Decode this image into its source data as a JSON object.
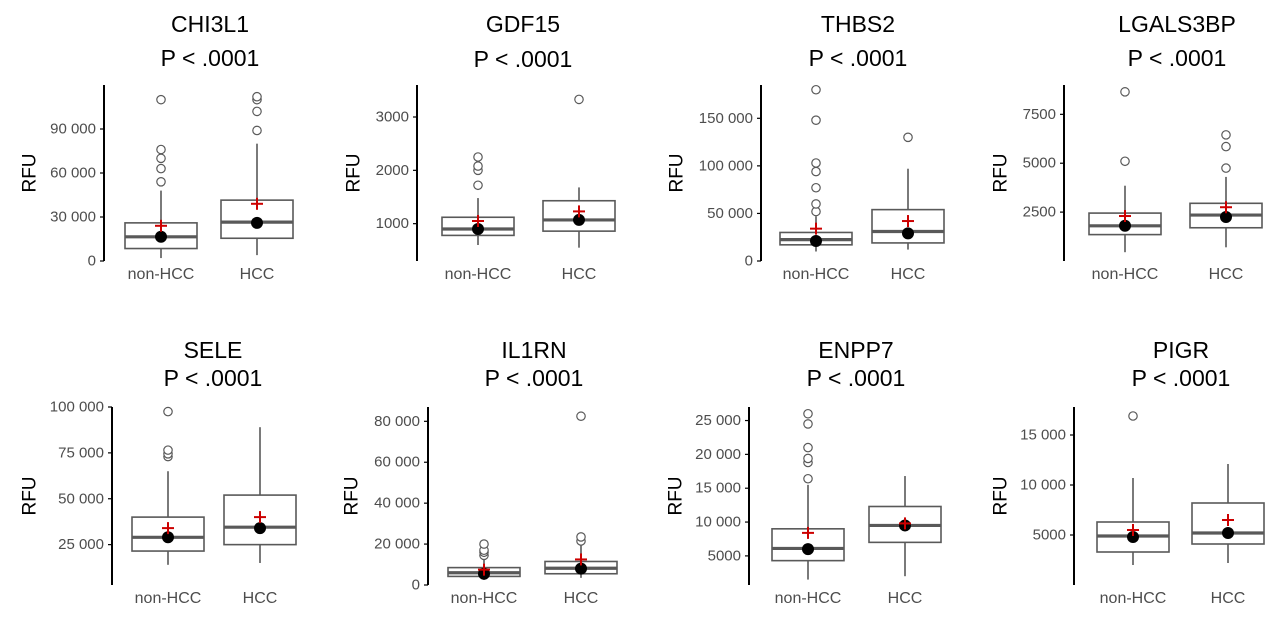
{
  "chart_data": [
    {
      "type": "boxplot",
      "title": "CHI3L1",
      "subtitle": "P < .0001",
      "ylabel": "RFU",
      "yticks": [
        0,
        30000,
        60000,
        90000
      ],
      "ytick_labels": [
        "0",
        "30 000",
        "60 000",
        "90 000"
      ],
      "ylim": [
        0,
        120000
      ],
      "categories": [
        "non-HCC",
        "HCC"
      ],
      "groups": [
        {
          "name": "non-HCC",
          "whisker_low": 2000,
          "q1": 8500,
          "median": 16500,
          "q3": 26000,
          "whisker_high": 48000,
          "mean": 24000,
          "median_point": 16500,
          "outliers": [
            54000,
            63000,
            70000,
            76000,
            110000
          ]
        },
        {
          "name": "HCC",
          "whisker_low": 4000,
          "q1": 15500,
          "median": 26500,
          "q3": 41500,
          "whisker_high": 80000,
          "mean": 39000,
          "median_point": 26000,
          "outliers": [
            89000,
            102000,
            110000,
            112000
          ]
        }
      ]
    },
    {
      "type": "boxplot",
      "title": "GDF15",
      "subtitle": "P < .0001",
      "ylabel": "RFU",
      "yticks": [
        1000,
        2000,
        3000
      ],
      "ytick_labels": [
        "1000",
        "2000",
        "3000"
      ],
      "ylim": [
        300,
        3600
      ],
      "categories": [
        "non-HCC",
        "HCC"
      ],
      "groups": [
        {
          "name": "non-HCC",
          "whisker_low": 600,
          "q1": 780,
          "median": 900,
          "q3": 1120,
          "whisker_high": 1480,
          "mean": 1050,
          "median_point": 900,
          "outliers": [
            1720,
            2000,
            2080,
            2250
          ]
        },
        {
          "name": "HCC",
          "whisker_low": 550,
          "q1": 860,
          "median": 1070,
          "q3": 1430,
          "whisker_high": 1680,
          "mean": 1230,
          "median_point": 1070,
          "outliers": [
            3330
          ]
        }
      ]
    },
    {
      "type": "boxplot",
      "title": "THBS2",
      "subtitle": "P < .0001",
      "ylabel": "RFU",
      "yticks": [
        0,
        50000,
        100000,
        150000
      ],
      "ytick_labels": [
        "0",
        "50 000",
        "100 000",
        "150 000"
      ],
      "ylim": [
        0,
        185000
      ],
      "categories": [
        "non-HCC",
        "HCC"
      ],
      "groups": [
        {
          "name": "non-HCC",
          "whisker_low": 10000,
          "q1": 17000,
          "median": 22500,
          "q3": 30000,
          "whisker_high": 47000,
          "mean": 34000,
          "median_point": 21000,
          "outliers": [
            52000,
            60000,
            77000,
            94000,
            103000,
            148000,
            180000
          ]
        },
        {
          "name": "HCC",
          "whisker_low": 12000,
          "q1": 19000,
          "median": 31000,
          "q3": 54000,
          "whisker_high": 97000,
          "mean": 42000,
          "median_point": 29000,
          "outliers": [
            130000
          ]
        }
      ]
    },
    {
      "type": "boxplot",
      "title": "LGALS3BP",
      "subtitle": "P < .0001",
      "ylabel": "RFU",
      "yticks": [
        2500,
        5000,
        7500
      ],
      "ytick_labels": [
        "2500",
        "5000",
        "7500"
      ],
      "ylim": [
        0,
        9000
      ],
      "categories": [
        "non-HCC",
        "HCC"
      ],
      "groups": [
        {
          "name": "non-HCC",
          "whisker_low": 450,
          "q1": 1350,
          "median": 1800,
          "q3": 2450,
          "whisker_high": 3850,
          "mean": 2300,
          "median_point": 1800,
          "outliers": [
            5100,
            8650
          ]
        },
        {
          "name": "HCC",
          "whisker_low": 700,
          "q1": 1700,
          "median": 2350,
          "q3": 2950,
          "whisker_high": 4300,
          "mean": 2750,
          "median_point": 2250,
          "outliers": [
            4750,
            5850,
            6450
          ]
        }
      ]
    },
    {
      "type": "boxplot",
      "title": "SELE",
      "subtitle": "P < .0001",
      "ylabel": "RFU",
      "yticks": [
        25000,
        50000,
        75000,
        100000
      ],
      "ytick_labels": [
        "25 000",
        "50 000",
        "75 000",
        "100 000"
      ],
      "ylim": [
        3000,
        100000
      ],
      "categories": [
        "non-HCC",
        "HCC"
      ],
      "groups": [
        {
          "name": "non-HCC",
          "whisker_low": 14000,
          "q1": 21500,
          "median": 29000,
          "q3": 40000,
          "whisker_high": 65000,
          "mean": 34000,
          "median_point": 29000,
          "outliers": [
            73000,
            74500,
            76500,
            97500
          ]
        },
        {
          "name": "HCC",
          "whisker_low": 15000,
          "q1": 25000,
          "median": 34500,
          "q3": 52000,
          "whisker_high": 89000,
          "mean": 40000,
          "median_point": 34000,
          "outliers": []
        }
      ]
    },
    {
      "type": "boxplot",
      "title": "IL1RN",
      "subtitle": "P < .0001",
      "ylabel": "RFU",
      "yticks": [
        0,
        20000,
        40000,
        60000,
        80000
      ],
      "ytick_labels": [
        "0",
        "20 000",
        "40 000",
        "60 000",
        "80 000"
      ],
      "ylim": [
        0,
        87000
      ],
      "categories": [
        "non-HCC",
        "HCC"
      ],
      "groups": [
        {
          "name": "non-HCC",
          "whisker_low": 2500,
          "q1": 4200,
          "median": 6000,
          "q3": 8500,
          "whisker_high": 12500,
          "mean": 7500,
          "median_point": 5500,
          "outliers": [
            14500,
            16000,
            17000,
            20000
          ]
        },
        {
          "name": "HCC",
          "whisker_low": 3500,
          "q1": 5500,
          "median": 8200,
          "q3": 11500,
          "whisker_high": 20000,
          "mean": 12500,
          "median_point": 8000,
          "outliers": [
            21500,
            23500,
            82500
          ]
        }
      ]
    },
    {
      "type": "boxplot",
      "title": "ENPP7",
      "subtitle": "P < .0001",
      "ylabel": "RFU",
      "yticks": [
        5000,
        10000,
        15000,
        20000,
        25000
      ],
      "ytick_labels": [
        "5000",
        "10 000",
        "15 000",
        "20 000",
        "25 000"
      ],
      "ylim": [
        700,
        27000
      ],
      "categories": [
        "non-HCC",
        "HCC"
      ],
      "groups": [
        {
          "name": "non-HCC",
          "whisker_low": 1500,
          "q1": 4300,
          "median": 6100,
          "q3": 9000,
          "whisker_high": 15500,
          "mean": 8400,
          "median_point": 6000,
          "outliers": [
            16400,
            18800,
            19400,
            21000,
            24500,
            26000
          ]
        },
        {
          "name": "HCC",
          "whisker_low": 2000,
          "q1": 7000,
          "median": 9500,
          "q3": 12300,
          "whisker_high": 16800,
          "mean": 9800,
          "median_point": 9500,
          "outliers": []
        }
      ]
    },
    {
      "type": "boxplot",
      "title": "PIGR",
      "subtitle": "P < .0001",
      "ylabel": "RFU",
      "yticks": [
        5000,
        10000,
        15000
      ],
      "ytick_labels": [
        "5000",
        "10 000",
        "15 000"
      ],
      "ylim": [
        0,
        17800
      ],
      "categories": [
        "non-HCC",
        "HCC"
      ],
      "groups": [
        {
          "name": "non-HCC",
          "whisker_low": 2000,
          "q1": 3300,
          "median": 4900,
          "q3": 6300,
          "whisker_high": 10700,
          "mean": 5500,
          "median_point": 4800,
          "outliers": [
            16900
          ]
        },
        {
          "name": "HCC",
          "whisker_low": 2200,
          "q1": 4100,
          "median": 5200,
          "q3": 8200,
          "whisker_high": 12100,
          "mean": 6500,
          "median_point": 5200,
          "outliers": []
        }
      ]
    }
  ],
  "colors": {
    "box": "#595959",
    "median_point": "#000000",
    "mean_marker": "#cc0000",
    "outlier": "#595959",
    "axis": "#000000",
    "tick_text": "#4d4d4d"
  }
}
